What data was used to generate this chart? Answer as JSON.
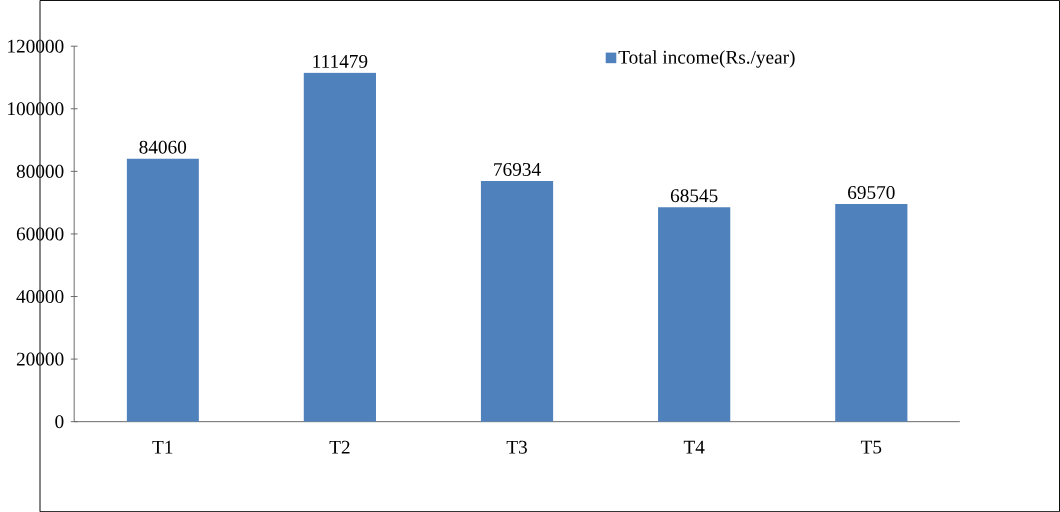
{
  "chart_data": {
    "type": "bar",
    "categories": [
      "T1",
      "T2",
      "T3",
      "T4",
      "T5"
    ],
    "series": [
      {
        "name": "Total income(Rs./year)",
        "color": "#4f81bd",
        "values": [
          84060,
          111479,
          76934,
          68545,
          69570
        ]
      }
    ],
    "ylim": [
      0,
      120000
    ],
    "yticks": [
      0,
      20000,
      40000,
      60000,
      80000,
      100000,
      120000
    ],
    "data_labels": true,
    "legend": "top right",
    "grid": false
  }
}
